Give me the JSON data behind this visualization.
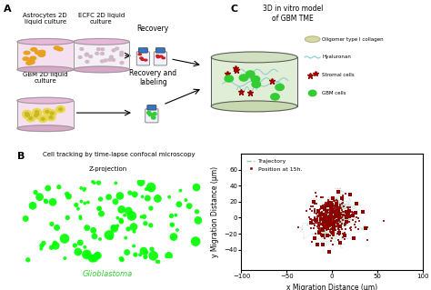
{
  "panel_A_label": "A",
  "panel_B_label": "B",
  "panel_C_label": "C",
  "title_A1": "Astrocytes 2D\nliquid culture",
  "title_A2": "ECFC 2D liquid\nculture",
  "title_A3": "GBM 2D liquid\nculture",
  "recovery_label": "Recovery",
  "recovery_labeling_label": "Recovery and\nlabeling",
  "model_title": "3D in vitro model\nof GBM TME",
  "legend_items": [
    "Oligomer type I collagen",
    "Hyaluronan",
    "Stromal cells",
    "GBM cells"
  ],
  "panel_B_title": "Cell tracking by time-lapse confocal microscopy",
  "panel_B_subtitle": "Z-projection",
  "panel_B_label_bottom": "Glioblastoma",
  "panel_C_xlabel": "x Migration Distance (μm)",
  "panel_C_ylabel": "y Migration Distance (μm)",
  "panel_C_xlim": [
    -100,
    100
  ],
  "panel_C_ylim": [
    -65,
    80
  ],
  "panel_C_xticks": [
    -100,
    -50,
    0,
    50,
    100
  ],
  "panel_C_yticks": [
    -40,
    -20,
    0,
    20,
    40,
    60
  ],
  "traj_color": "#a0c8b0",
  "pos_color": "#8b0000",
  "bg_color": "#ffffff",
  "legend_traj": "Trajectory",
  "legend_pos": "Position at 15h."
}
